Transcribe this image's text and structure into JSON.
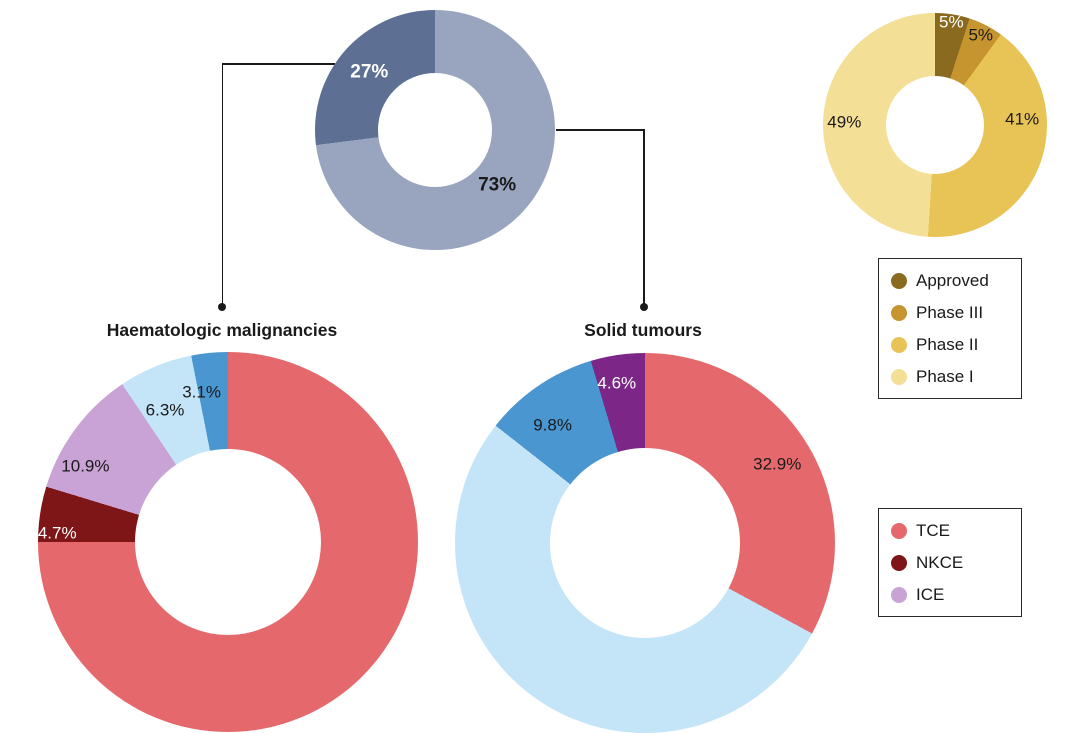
{
  "chart_data": [
    {
      "name": "indication-split",
      "type": "donut",
      "hole": 0.475,
      "title": "",
      "slices": [
        {
          "name": "Solid tumours share",
          "label": "73%",
          "value": 73,
          "color": "#99A5BF",
          "label_color": "#1a1a1a",
          "label_r": 0.69,
          "bold": true
        },
        {
          "name": "Haematologic share",
          "label": "27%",
          "value": 27,
          "color": "#5D6F93",
          "label_color": "#ffffff",
          "label_r": 0.73,
          "bold": true
        }
      ]
    },
    {
      "name": "phase-split",
      "type": "donut",
      "hole": 0.44,
      "title": "",
      "slices": [
        {
          "name": "Approved",
          "label": "5%",
          "value": 5,
          "color": "#8A6A1E",
          "label_color": "#ffffff",
          "label_r": 0.93
        },
        {
          "name": "Phase III",
          "label": "5%",
          "value": 5,
          "color": "#C6952F",
          "label_color": "#1a1a1a",
          "label_r": 0.9
        },
        {
          "name": "Phase II",
          "label": "41%",
          "value": 41,
          "color": "#E8C355",
          "label_color": "#1a1a1a",
          "label_r": 0.78,
          "label_angle": 86
        },
        {
          "name": "Phase I",
          "label": "49%",
          "value": 49,
          "color": "#F4DF97",
          "label_color": "#1a1a1a",
          "label_r": 0.81
        }
      ]
    },
    {
      "name": "haematologic",
      "type": "donut",
      "hole": 0.49,
      "title": "Haematologic malignancies",
      "slices": [
        {
          "name": "TCE",
          "label": "",
          "value": 75.0,
          "color": "#E5696C"
        },
        {
          "name": "NKCE",
          "label": "4.7%",
          "value": 4.7,
          "color": "#7E1517",
          "label_color": "#ffffff",
          "label_r": 0.9,
          "label_angle": 273
        },
        {
          "name": "ICE",
          "label": "10.9%",
          "value": 10.9,
          "color": "#C9A2D6",
          "label_color": "#1a1a1a",
          "label_r": 0.85,
          "label_angle": 298
        },
        {
          "name": "",
          "label": "6.3%",
          "value": 6.3,
          "color": "#C4E4F8",
          "label_color": "#1a1a1a",
          "label_r": 0.77,
          "label_angle": 334.5
        },
        {
          "name": "",
          "label": "3.1%",
          "value": 3.1,
          "color": "#4A96D1",
          "label_color": "#1a1a1a",
          "label_r": 0.8,
          "label_angle": 350
        }
      ]
    },
    {
      "name": "solid",
      "type": "donut",
      "hole": 0.5,
      "title": "Solid tumours",
      "slices": [
        {
          "name": "TCE",
          "label": "32.9%",
          "value": 32.9,
          "color": "#E5696C",
          "label_color": "#1a1a1a",
          "label_r": 0.81
        },
        {
          "name": "",
          "label": "",
          "value": 52.7,
          "color": "#C4E4F8"
        },
        {
          "name": "",
          "label": "9.8%",
          "value": 9.8,
          "color": "#4A96D1",
          "label_color": "#1a1a1a",
          "label_r": 0.79,
          "label_angle": 322
        },
        {
          "name": "",
          "label": "4.6%",
          "value": 4.6,
          "color": "#7C2787",
          "label_color": "#ffffff",
          "label_r": 0.855,
          "label_angle": 350
        }
      ]
    }
  ],
  "legends": {
    "phases": {
      "items": [
        {
          "label": "Approved",
          "color": "#8A6A1E"
        },
        {
          "label": "Phase III",
          "color": "#C6952F"
        },
        {
          "label": "Phase II",
          "color": "#E8C355"
        },
        {
          "label": "Phase I",
          "color": "#F4DF97"
        }
      ]
    },
    "types": {
      "items": [
        {
          "label": "TCE",
          "color": "#E5696C"
        },
        {
          "label": "NKCE",
          "color": "#7E1517"
        },
        {
          "label": "ICE",
          "color": "#C9A2D6"
        }
      ]
    }
  }
}
